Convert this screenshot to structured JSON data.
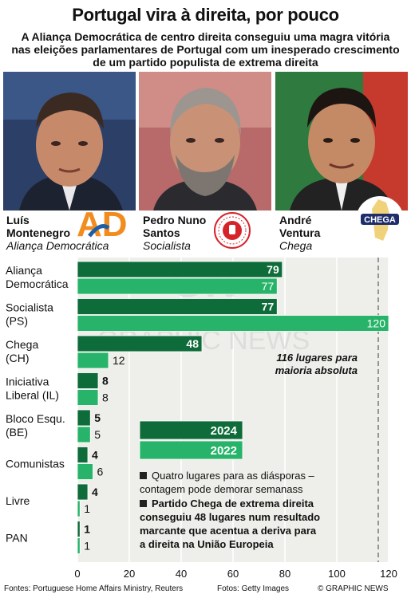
{
  "header": {
    "title": "Portugal vira à direita, por pouco",
    "subtitle_lines": [
      "A Aliança Democrática de centro direita conseguiu uma magra vitória",
      "nas eleições parlamentares de Portugal com um inesperado crescimento",
      "de um partido populista de extrema direita"
    ]
  },
  "leaders": [
    {
      "first": "Luís",
      "last": "Montenegro",
      "party": "Aliança Democrática",
      "logo_text": "AD",
      "logo_color": "#f28c1e"
    },
    {
      "first": "Pedro Nuno",
      "last": "Santos",
      "party": "Socialista",
      "logo_text": "PARTIDO SOCIALISTA",
      "logo_color": "#d6232a"
    },
    {
      "first": "André",
      "last": "Ventura",
      "party": "Chega",
      "logo_text": "CHEGA",
      "logo_color": "#1e2d6b"
    }
  ],
  "chart_data": {
    "type": "bar",
    "orientation": "horizontal",
    "categories": [
      [
        "Aliança",
        "Democrática"
      ],
      [
        "Socialista",
        "(PS)"
      ],
      [
        "Chega",
        "(CH)"
      ],
      [
        "Iniciativa",
        "Liberal (IL)"
      ],
      [
        "Bloco Esqu.",
        "(BE)"
      ],
      [
        "Comunistas"
      ],
      [
        "Livre"
      ],
      [
        "PAN"
      ]
    ],
    "series": [
      {
        "name": "2024",
        "values": [
          79,
          77,
          48,
          8,
          5,
          4,
          4,
          1
        ],
        "color": "#0e6b3a"
      },
      {
        "name": "2022",
        "values": [
          77,
          120,
          12,
          8,
          5,
          6,
          1,
          1
        ],
        "color": "#27b46a"
      }
    ],
    "xlim": [
      0,
      120
    ],
    "xticks": [
      0,
      20,
      40,
      60,
      80,
      100,
      120
    ],
    "reference_line": {
      "value": 116,
      "label_lines": [
        "116 lugares para",
        "maioria absoluta"
      ]
    },
    "legend_placement": "center-right",
    "annotations": [
      {
        "lines": [
          "Quatro lugares para as diásporas –",
          "contagem pode demorar semanass"
        ],
        "bold": false
      },
      {
        "lines": [
          "Partido Chega de extrema direita",
          "conseguiu 48 lugares num resultado",
          "marcante que acentua a deriva para",
          "a direita na União Europeia"
        ],
        "bold": true
      }
    ],
    "grid": true
  },
  "watermark": {
    "line1": "GN",
    "line2": "GRAPHIC NEWS"
  },
  "footer": {
    "sources": "Fontes: Portuguese Home Affairs Ministry, Reuters",
    "photos": "Fotos: Getty Images",
    "credit": "© GRAPHIC NEWS"
  }
}
